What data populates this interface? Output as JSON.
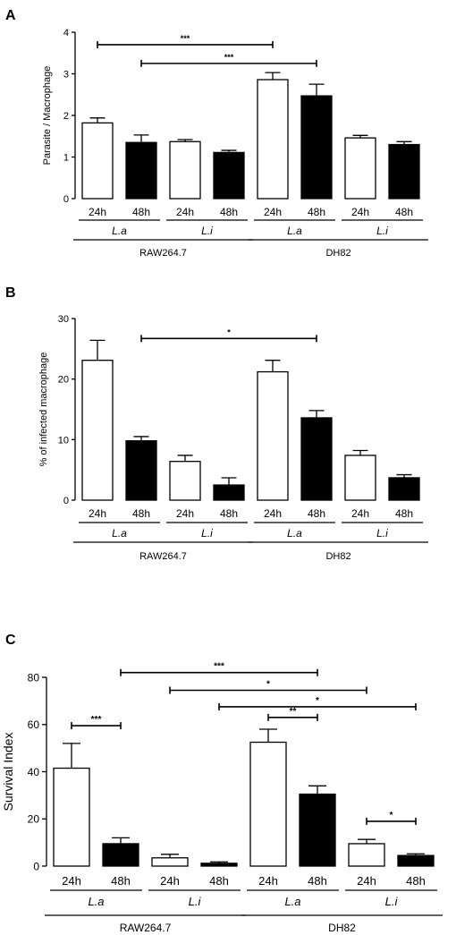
{
  "chart_data": [
    {
      "panel_label": "A",
      "type": "bar",
      "ylabel": "Parasite / Macrophage",
      "ylim": [
        0,
        4
      ],
      "yticks": [
        "0",
        "1",
        "2",
        "3",
        "4"
      ],
      "bars": [
        {
          "time": "24h",
          "value": 1.82,
          "error": 0.12,
          "fill": "white"
        },
        {
          "time": "48h",
          "value": 1.35,
          "error": 0.18,
          "fill": "black"
        },
        {
          "time": "24h",
          "value": 1.37,
          "error": 0.05,
          "fill": "white"
        },
        {
          "time": "48h",
          "value": 1.11,
          "error": 0.05,
          "fill": "black"
        },
        {
          "time": "24h",
          "value": 2.86,
          "error": 0.17,
          "fill": "white"
        },
        {
          "time": "48h",
          "value": 2.47,
          "error": 0.28,
          "fill": "black"
        },
        {
          "time": "24h",
          "value": 1.46,
          "error": 0.06,
          "fill": "white"
        },
        {
          "time": "48h",
          "value": 1.3,
          "error": 0.07,
          "fill": "black"
        }
      ],
      "species": [
        "L.a",
        "L.i",
        "L.a",
        "L.i"
      ],
      "cell_lines": [
        "RAW264.7",
        "DH82"
      ],
      "significance": [
        {
          "from": 0,
          "to": 4,
          "value": 3.7,
          "label": "***"
        },
        {
          "from": 1,
          "to": 5,
          "value": 3.25,
          "label": "***"
        }
      ]
    },
    {
      "panel_label": "B",
      "type": "bar",
      "ylabel": "% of infected macrophage",
      "ylim": [
        0,
        30
      ],
      "yticks": [
        "0",
        "10",
        "20",
        "30"
      ],
      "bars": [
        {
          "time": "24h",
          "value": 23.1,
          "error": 3.3,
          "fill": "white"
        },
        {
          "time": "48h",
          "value": 9.8,
          "error": 0.7,
          "fill": "black"
        },
        {
          "time": "24h",
          "value": 6.4,
          "error": 1.0,
          "fill": "white"
        },
        {
          "time": "48h",
          "value": 2.5,
          "error": 1.2,
          "fill": "black"
        },
        {
          "time": "24h",
          "value": 21.2,
          "error": 1.9,
          "fill": "white"
        },
        {
          "time": "48h",
          "value": 13.6,
          "error": 1.2,
          "fill": "black"
        },
        {
          "time": "24h",
          "value": 7.4,
          "error": 0.8,
          "fill": "white"
        },
        {
          "time": "48h",
          "value": 3.7,
          "error": 0.5,
          "fill": "black"
        }
      ],
      "species": [
        "L.a",
        "L.i",
        "L.a",
        "L.i"
      ],
      "cell_lines": [
        "RAW264.7",
        "DH82"
      ],
      "significance": [
        {
          "from": 1,
          "to": 5,
          "value": 26.7,
          "label": "*"
        }
      ]
    },
    {
      "panel_label": "C",
      "type": "bar",
      "ylabel": "Survival Index",
      "ylim": [
        0,
        80
      ],
      "yticks": [
        "0",
        "20",
        "40",
        "60",
        "80"
      ],
      "bars": [
        {
          "time": "24h",
          "value": 41.5,
          "error": 10.5,
          "fill": "white"
        },
        {
          "time": "48h",
          "value": 9.5,
          "error": 2.5,
          "fill": "black"
        },
        {
          "time": "24h",
          "value": 3.5,
          "error": 1.5,
          "fill": "white"
        },
        {
          "time": "48h",
          "value": 1.2,
          "error": 0.6,
          "fill": "black"
        },
        {
          "time": "24h",
          "value": 52.5,
          "error": 5.5,
          "fill": "white"
        },
        {
          "time": "48h",
          "value": 30.5,
          "error": 3.5,
          "fill": "black"
        },
        {
          "time": "24h",
          "value": 9.5,
          "error": 1.8,
          "fill": "white"
        },
        {
          "time": "48h",
          "value": 4.5,
          "error": 0.7,
          "fill": "black"
        }
      ],
      "species": [
        "L.a",
        "L.i",
        "L.a",
        "L.i"
      ],
      "cell_lines": [
        "RAW264.7",
        "DH82"
      ],
      "significance": [
        {
          "from": 1,
          "to": 5,
          "value": 82,
          "label": "***"
        },
        {
          "from": 2,
          "to": 6,
          "value": 74.5,
          "label": "*"
        },
        {
          "from": 3,
          "to": 7,
          "value": 67.5,
          "label": "*"
        },
        {
          "from": 4,
          "to": 5,
          "value": 63,
          "label": "**"
        },
        {
          "from": 0,
          "to": 1,
          "value": 59.5,
          "label": "***"
        },
        {
          "from": 6,
          "to": 7,
          "value": 19,
          "label": "*"
        }
      ]
    }
  ]
}
